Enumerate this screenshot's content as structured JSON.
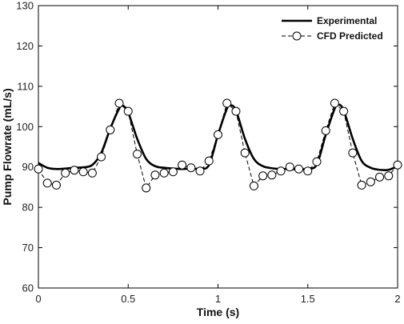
{
  "chart_data": {
    "type": "line",
    "xlabel": "Time (s)",
    "ylabel": "Pump Flowrate (mL/s)",
    "xlim": [
      0,
      2
    ],
    "ylim": [
      60,
      130
    ],
    "x_ticks": [
      0,
      0.5,
      1,
      1.5,
      2
    ],
    "x_tick_labels": [
      "0",
      "0.5",
      "1",
      "1.5",
      "2"
    ],
    "y_ticks": [
      60,
      70,
      80,
      90,
      100,
      110,
      120,
      130
    ],
    "y_tick_labels": [
      "60",
      "70",
      "80",
      "90",
      "100",
      "110",
      "120",
      "130"
    ],
    "grid": false,
    "legend_position": "top-right",
    "series": [
      {
        "name": "Experimental",
        "style": "solid-line",
        "color": "#000000",
        "x": [
          0,
          0.05,
          0.1,
          0.15,
          0.2,
          0.25,
          0.3,
          0.35,
          0.4,
          0.45,
          0.47,
          0.5,
          0.55,
          0.6,
          0.65,
          0.7,
          0.75,
          0.8,
          0.85,
          0.9,
          0.95,
          1.0,
          1.05,
          1.07,
          1.1,
          1.15,
          1.2,
          1.25,
          1.3,
          1.35,
          1.4,
          1.45,
          1.5,
          1.55,
          1.6,
          1.65,
          1.67,
          1.7,
          1.75,
          1.8,
          1.85,
          1.9,
          1.95,
          2.0
        ],
        "y": [
          91,
          89.8,
          89.5,
          89.6,
          89.8,
          89.9,
          90.5,
          93.5,
          99.5,
          104.5,
          105.2,
          103.5,
          97,
          92,
          90.2,
          89.8,
          89.6,
          89.5,
          89.6,
          89.6,
          90.5,
          98,
          104.5,
          105.3,
          104,
          97,
          92,
          90.2,
          89.7,
          89.5,
          89.5,
          89.4,
          89.6,
          90.6,
          98,
          104.5,
          105.5,
          104,
          97,
          91.5,
          89.8,
          89.3,
          89.3,
          90.2
        ]
      },
      {
        "name": "CFD Predicted",
        "style": "dashed-line-circle-markers",
        "color": "#000000",
        "x": [
          0,
          0.05,
          0.1,
          0.15,
          0.2,
          0.25,
          0.3,
          0.35,
          0.4,
          0.45,
          0.5,
          0.55,
          0.6,
          0.65,
          0.7,
          0.75,
          0.8,
          0.85,
          0.9,
          0.95,
          1.0,
          1.05,
          1.1,
          1.15,
          1.2,
          1.25,
          1.3,
          1.35,
          1.4,
          1.45,
          1.5,
          1.55,
          1.6,
          1.65,
          1.7,
          1.75,
          1.8,
          1.85,
          1.9,
          1.95,
          2.0
        ],
        "y": [
          89.5,
          86,
          85.5,
          88.5,
          89.2,
          88.8,
          88.5,
          92.5,
          99.2,
          105.8,
          103.8,
          93.2,
          84.8,
          88,
          88.5,
          88.8,
          90.5,
          89.8,
          89,
          91.5,
          98,
          105.8,
          103.8,
          93.5,
          85.3,
          87.8,
          88,
          89,
          90,
          89.5,
          89,
          91.3,
          99,
          105.8,
          103.8,
          93.5,
          85.5,
          86.3,
          87.5,
          87.8,
          90.5
        ]
      }
    ]
  }
}
